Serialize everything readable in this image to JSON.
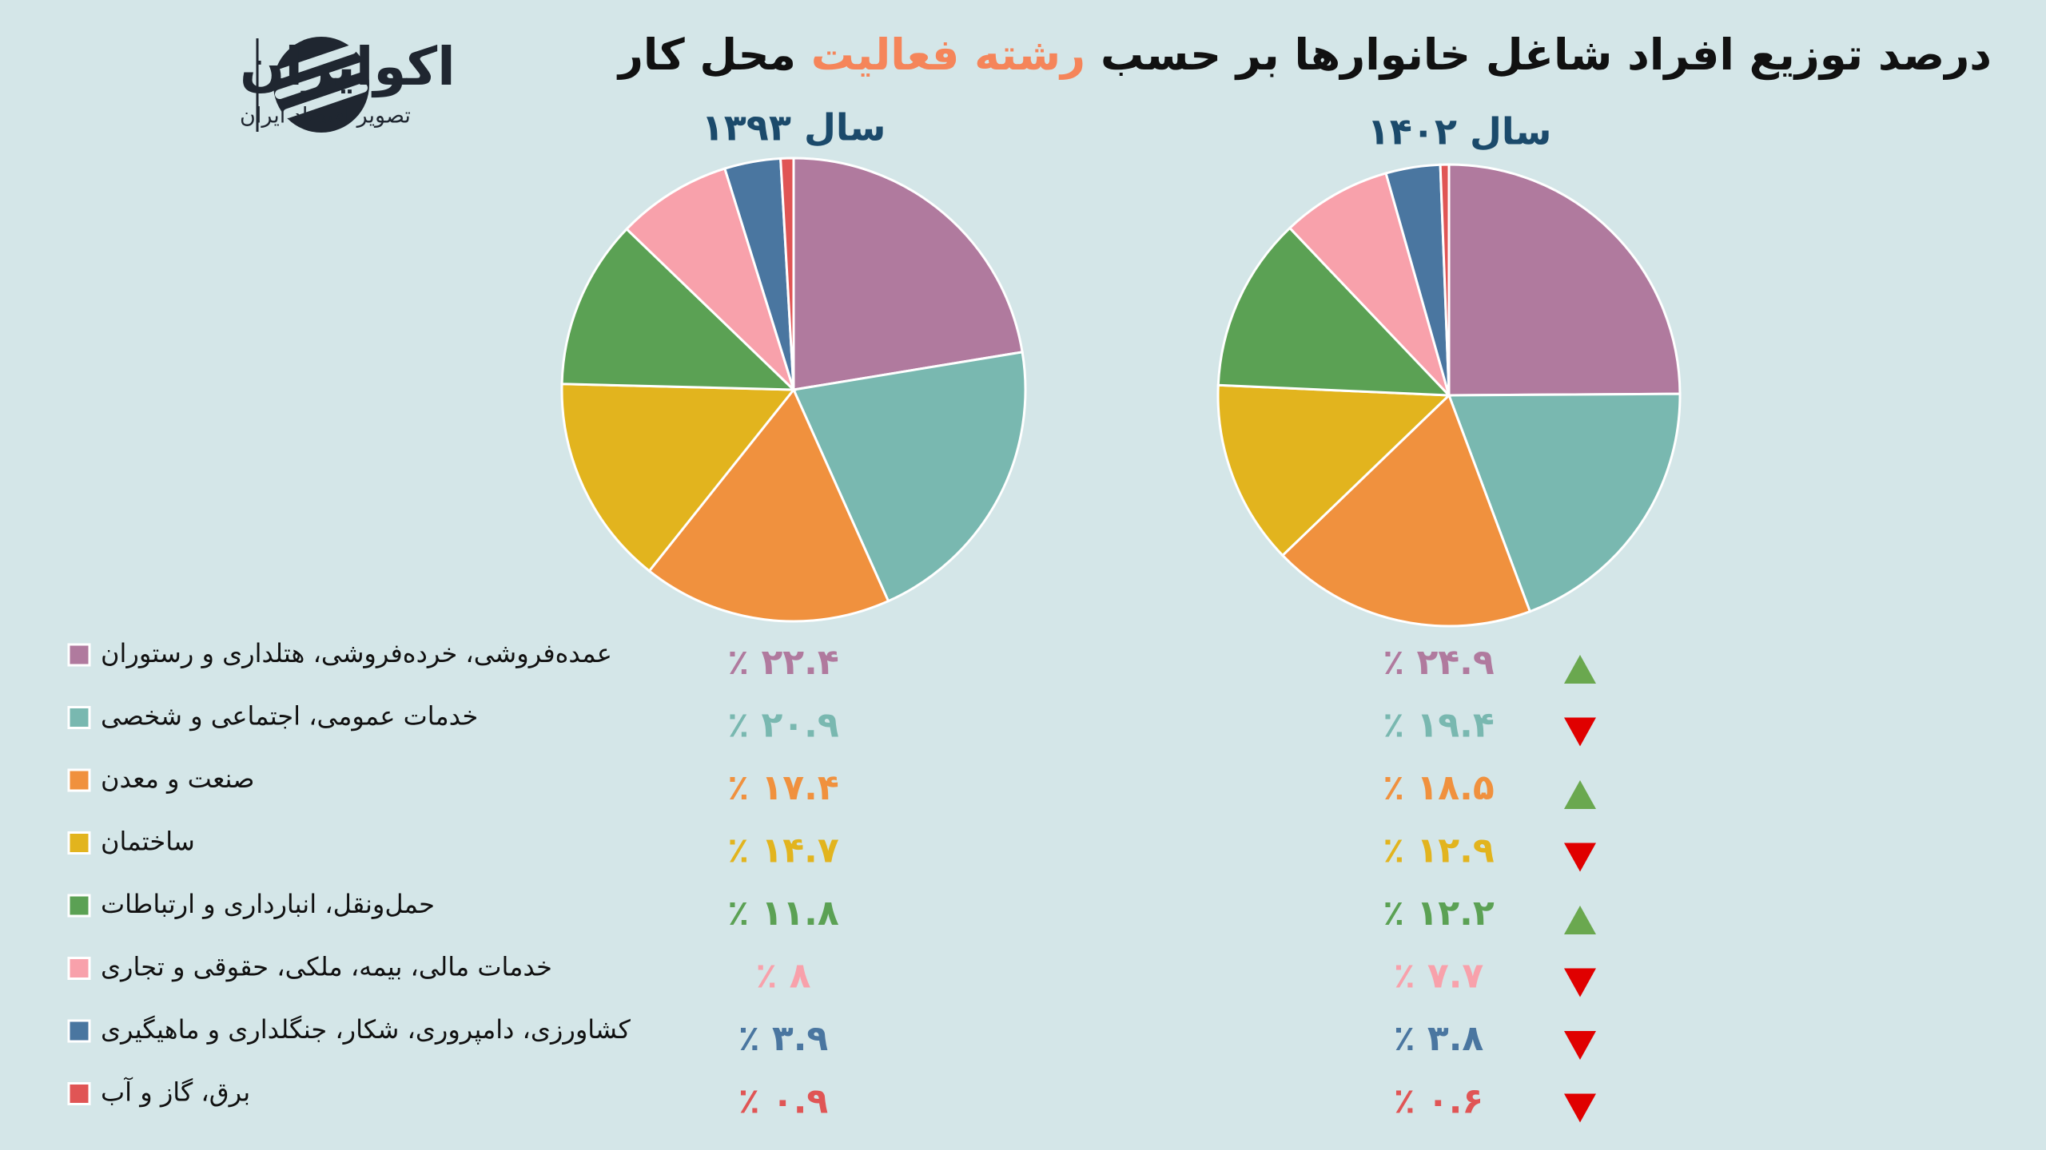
{
  "logo": {
    "name": "اکوایران",
    "tagline": "تصویر اقتصاد ایران"
  },
  "chart_data": {
    "type": "pie",
    "title_parts": [
      "درصد توزیع افراد شاغل خانوارها بر حسب",
      "رشته فعالیت",
      "محل کار"
    ],
    "title_highlight_color": "#f5855a",
    "categories": [
      "عمده‌فروشی، خرده‌فروشی، هتلداری و رستوران",
      "خدمات عمومی، اجتماعی و شخصی",
      "صنعت و معدن",
      "ساختمان",
      "حمل‌ونقل، انبارداری و ارتباطات",
      "خدمات مالی، بیمه، ملکی، حقوقی و تجاری",
      "کشاورزی، دامپروری، شکار، جنگلداری و ماهیگیری",
      "برق، گاز و آب"
    ],
    "colors": [
      "#b07a9e",
      "#79b8b0",
      "#f0913e",
      "#e2b41e",
      "#5ba154",
      "#f8a1ab",
      "#4a76a0",
      "#e05555"
    ],
    "series": [
      {
        "name": "سال ۱۳۹۳",
        "values": [
          22.4,
          20.9,
          17.4,
          14.7,
          11.8,
          8,
          3.9,
          0.9
        ],
        "value_labels": [
          "٪ ۲۲.۴",
          "٪ ۲۰.۹",
          "٪ ۱۷.۴",
          "٪ ۱۴.۷",
          "٪ ۱۱.۸",
          "٪ ۸",
          "٪ ۳.۹",
          "٪ ۰.۹"
        ]
      },
      {
        "name": "سال ۱۴۰۲",
        "values": [
          24.9,
          19.4,
          18.5,
          12.9,
          12.2,
          7.7,
          3.8,
          0.6
        ],
        "value_labels": [
          "٪ ۲۴.۹",
          "٪ ۱۹.۴",
          "٪ ۱۸.۵",
          "٪ ۱۲.۹",
          "٪ ۱۲.۲",
          "٪ ۷.۷",
          "٪ ۳.۸",
          "٪ ۰.۶"
        ]
      }
    ]
  }
}
